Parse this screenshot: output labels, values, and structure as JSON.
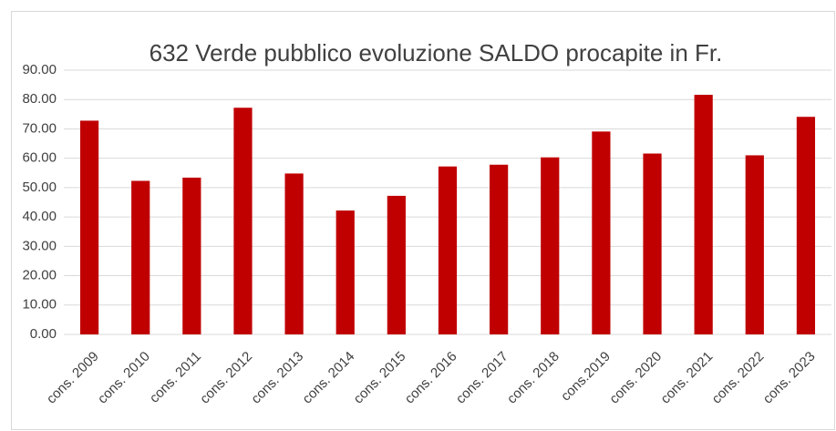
{
  "chart_data": {
    "type": "bar",
    "title": "632 Verde pubblico evoluzione SALDO procapite in Fr.",
    "categories": [
      "cons. 2009",
      "cons. 2010",
      "cons. 2011",
      "cons. 2012",
      "cons. 2013",
      "cons. 2014",
      "cons. 2015",
      "cons. 2016",
      "cons. 2017",
      "cons. 2018",
      "cons.2019",
      "cons. 2020",
      "cons. 2021",
      "cons. 2022",
      "cons. 2023"
    ],
    "values": [
      72.8,
      52.3,
      53.4,
      77.2,
      54.8,
      42.2,
      47.2,
      57.2,
      57.8,
      60.3,
      69.1,
      61.6,
      81.6,
      61.0,
      74.1
    ],
    "color": "#c00000",
    "ylim": [
      0,
      90
    ],
    "yticks": [
      {
        "value": 0,
        "label": "0.00"
      },
      {
        "value": 10,
        "label": "10.00"
      },
      {
        "value": 20,
        "label": "20.00"
      },
      {
        "value": 30,
        "label": "30.00"
      },
      {
        "value": 40,
        "label": "40.00"
      },
      {
        "value": 50,
        "label": "50.00"
      },
      {
        "value": 60,
        "label": "60.00"
      },
      {
        "value": 70,
        "label": "70.00"
      },
      {
        "value": 80,
        "label": "80.00"
      },
      {
        "value": 90,
        "label": "90.00"
      }
    ],
    "grid": true
  }
}
